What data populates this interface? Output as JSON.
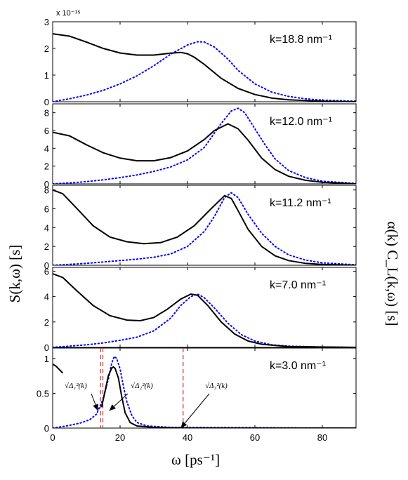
{
  "chart_data": {
    "type": "line",
    "xlabel": "ω  [ps⁻¹]",
    "ylabel_left": "S(k,ω)  [s]",
    "ylabel_right": "α(k) C_L(k,ω)  [s]",
    "xlim": [
      0,
      90
    ],
    "x_ticks": [
      "0",
      "20",
      "40",
      "60",
      "80"
    ],
    "scale_note": "x 10⁻¹⁵",
    "series_styles": [
      {
        "key": "S",
        "color": "#000000",
        "style": "solid"
      },
      {
        "key": "C",
        "color": "#0000ff",
        "style": "dotted"
      }
    ],
    "panels": [
      {
        "label": "k=18.8 nm⁻¹",
        "ylim": [
          0,
          3
        ],
        "y_ticks": [
          0,
          1,
          2,
          3
        ],
        "S": [
          [
            0,
            2.55
          ],
          [
            5,
            2.46
          ],
          [
            10,
            2.24
          ],
          [
            15,
            2.0
          ],
          [
            20,
            1.83
          ],
          [
            25,
            1.75
          ],
          [
            30,
            1.75
          ],
          [
            35,
            1.82
          ],
          [
            38,
            1.85
          ],
          [
            40,
            1.8
          ],
          [
            42,
            1.67
          ],
          [
            45,
            1.4
          ],
          [
            50,
            0.88
          ],
          [
            55,
            0.5
          ],
          [
            60,
            0.27
          ],
          [
            65,
            0.14
          ],
          [
            70,
            0.07
          ],
          [
            80,
            0.02
          ],
          [
            90,
            0.0
          ]
        ],
        "C": [
          [
            0,
            0.0
          ],
          [
            5,
            0.11
          ],
          [
            10,
            0.25
          ],
          [
            15,
            0.43
          ],
          [
            20,
            0.67
          ],
          [
            25,
            0.97
          ],
          [
            30,
            1.35
          ],
          [
            35,
            1.78
          ],
          [
            40,
            2.13
          ],
          [
            43,
            2.25
          ],
          [
            45,
            2.24
          ],
          [
            48,
            2.05
          ],
          [
            52,
            1.6
          ],
          [
            55,
            1.18
          ],
          [
            60,
            0.67
          ],
          [
            65,
            0.36
          ],
          [
            70,
            0.2
          ],
          [
            75,
            0.11
          ],
          [
            80,
            0.06
          ],
          [
            90,
            0.02
          ]
        ]
      },
      {
        "label": "k=12.0 nm⁻¹",
        "ylim": [
          0,
          9
        ],
        "y_ticks": [
          0,
          2,
          4,
          6,
          8
        ],
        "S": [
          [
            0,
            5.8
          ],
          [
            5,
            5.4
          ],
          [
            10,
            4.4
          ],
          [
            15,
            3.5
          ],
          [
            20,
            2.9
          ],
          [
            25,
            2.6
          ],
          [
            30,
            2.6
          ],
          [
            35,
            2.95
          ],
          [
            40,
            3.7
          ],
          [
            45,
            5.0
          ],
          [
            48,
            6.0
          ],
          [
            52,
            6.75
          ],
          [
            55,
            6.2
          ],
          [
            58,
            4.9
          ],
          [
            62,
            2.9
          ],
          [
            66,
            1.6
          ],
          [
            70,
            0.85
          ],
          [
            75,
            0.4
          ],
          [
            80,
            0.18
          ],
          [
            90,
            0.0
          ]
        ],
        "C": [
          [
            0,
            0.0
          ],
          [
            5,
            0.1
          ],
          [
            10,
            0.25
          ],
          [
            15,
            0.45
          ],
          [
            20,
            0.7
          ],
          [
            25,
            1.0
          ],
          [
            30,
            1.4
          ],
          [
            35,
            1.9
          ],
          [
            40,
            2.7
          ],
          [
            45,
            4.1
          ],
          [
            50,
            6.8
          ],
          [
            53,
            8.2
          ],
          [
            55,
            8.5
          ],
          [
            57,
            8.0
          ],
          [
            60,
            6.2
          ],
          [
            63,
            4.4
          ],
          [
            66,
            2.8
          ],
          [
            70,
            1.5
          ],
          [
            75,
            0.7
          ],
          [
            80,
            0.3
          ],
          [
            90,
            0.05
          ]
        ]
      },
      {
        "label": "k=11.2 nm⁻¹",
        "ylim": [
          0,
          8.5
        ],
        "y_ticks": [
          0,
          2,
          4,
          6,
          8
        ],
        "S": [
          [
            0,
            8.0
          ],
          [
            3,
            7.6
          ],
          [
            7,
            6.1
          ],
          [
            12,
            4.2
          ],
          [
            17,
            3.0
          ],
          [
            22,
            2.5
          ],
          [
            27,
            2.3
          ],
          [
            32,
            2.4
          ],
          [
            37,
            3.0
          ],
          [
            42,
            4.2
          ],
          [
            47,
            6.0
          ],
          [
            51,
            7.4
          ],
          [
            53,
            7.1
          ],
          [
            55,
            5.8
          ],
          [
            58,
            3.8
          ],
          [
            62,
            2.0
          ],
          [
            66,
            1.0
          ],
          [
            70,
            0.5
          ],
          [
            75,
            0.2
          ],
          [
            80,
            0.08
          ],
          [
            90,
            0.0
          ]
        ],
        "C": [
          [
            0,
            0.0
          ],
          [
            5,
            0.1
          ],
          [
            10,
            0.2
          ],
          [
            15,
            0.35
          ],
          [
            20,
            0.5
          ],
          [
            25,
            0.65
          ],
          [
            30,
            0.85
          ],
          [
            35,
            1.2
          ],
          [
            40,
            2.0
          ],
          [
            45,
            3.6
          ],
          [
            48,
            5.2
          ],
          [
            51,
            7.2
          ],
          [
            53,
            7.7
          ],
          [
            55,
            7.2
          ],
          [
            58,
            5.4
          ],
          [
            62,
            3.4
          ],
          [
            66,
            2.0
          ],
          [
            70,
            1.1
          ],
          [
            75,
            0.55
          ],
          [
            80,
            0.25
          ],
          [
            90,
            0.05
          ]
        ]
      },
      {
        "label": "k=7.0 nm⁻¹",
        "ylim": [
          0,
          6.3
        ],
        "y_ticks": [
          0,
          2,
          4,
          6
        ],
        "S": [
          [
            0,
            5.8
          ],
          [
            3,
            5.5
          ],
          [
            7,
            4.5
          ],
          [
            12,
            3.3
          ],
          [
            17,
            2.5
          ],
          [
            22,
            2.15
          ],
          [
            26,
            2.1
          ],
          [
            30,
            2.35
          ],
          [
            34,
            3.0
          ],
          [
            38,
            3.8
          ],
          [
            41,
            4.2
          ],
          [
            43,
            4.1
          ],
          [
            46,
            3.3
          ],
          [
            50,
            2.0
          ],
          [
            54,
            1.05
          ],
          [
            58,
            0.5
          ],
          [
            62,
            0.25
          ],
          [
            70,
            0.06
          ],
          [
            90,
            0.0
          ]
        ],
        "C": [
          [
            0,
            0.0
          ],
          [
            5,
            0.1
          ],
          [
            10,
            0.2
          ],
          [
            15,
            0.35
          ],
          [
            20,
            0.55
          ],
          [
            25,
            0.8
          ],
          [
            30,
            1.3
          ],
          [
            35,
            2.3
          ],
          [
            38,
            3.3
          ],
          [
            41,
            4.0
          ],
          [
            43,
            4.2
          ],
          [
            45,
            3.9
          ],
          [
            48,
            3.1
          ],
          [
            52,
            1.9
          ],
          [
            56,
            1.0
          ],
          [
            60,
            0.5
          ],
          [
            65,
            0.2
          ],
          [
            70,
            0.1
          ],
          [
            80,
            0.03
          ],
          [
            90,
            0.0
          ]
        ]
      },
      {
        "label": "k=3.0 nm⁻¹",
        "ylim": [
          0,
          1.15
        ],
        "y_ticks": [
          0,
          0.5,
          1
        ],
        "y_tick_labels": [
          "0",
          "0.5",
          "1"
        ],
        "S": [
          [
            0,
            0.92
          ],
          [
            1,
            0.89
          ],
          [
            2,
            0.84
          ],
          [
            3,
            0.79
          ]
        ],
        "S2": [
          [
            14.5,
            0.3
          ],
          [
            15.5,
            0.52
          ],
          [
            16.5,
            0.75
          ],
          [
            17.5,
            0.86
          ],
          [
            18,
            0.88
          ],
          [
            18.5,
            0.86
          ],
          [
            19.5,
            0.72
          ],
          [
            20.5,
            0.45
          ],
          [
            21.5,
            0.22
          ],
          [
            23,
            0.08
          ],
          [
            25,
            0.03
          ],
          [
            30,
            0.01
          ],
          [
            40,
            0.0
          ],
          [
            90,
            0.0
          ]
        ],
        "C": [
          [
            0,
            0.0
          ],
          [
            4,
            0.03
          ],
          [
            8,
            0.07
          ],
          [
            11,
            0.12
          ],
          [
            13,
            0.2
          ],
          [
            15,
            0.42
          ],
          [
            16.5,
            0.7
          ],
          [
            17.5,
            0.93
          ],
          [
            18.3,
            1.03
          ],
          [
            19,
            1.0
          ],
          [
            20,
            0.85
          ],
          [
            21,
            0.6
          ],
          [
            22,
            0.38
          ],
          [
            23.5,
            0.18
          ],
          [
            25,
            0.08
          ],
          [
            28,
            0.03
          ],
          [
            35,
            0.01
          ],
          [
            90,
            0.0
          ]
        ],
        "vlines": [
          14.2,
          14.9,
          38.7
        ],
        "vline_color": "#d62728",
        "annotations": [
          {
            "text": "√Δ₁²(k)",
            "to": [
              13.4,
              0.25
            ]
          },
          {
            "text": "√Δ₂²(k)",
            "to": [
              16.8,
              0.25
            ]
          },
          {
            "text": "√Δ₃²(k)",
            "to": [
              38.0,
              0.0
            ]
          }
        ]
      }
    ]
  }
}
